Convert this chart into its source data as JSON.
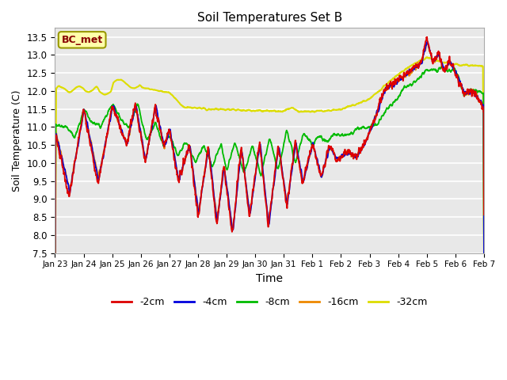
{
  "title": "Soil Temperatures Set B",
  "xlabel": "Time",
  "ylabel": "Soil Temperature (C)",
  "ylim": [
    7.5,
    13.75
  ],
  "yticks": [
    7.5,
    8.0,
    8.5,
    9.0,
    9.5,
    10.0,
    10.5,
    11.0,
    11.5,
    12.0,
    12.5,
    13.0,
    13.5
  ],
  "xtick_labels": [
    "Jan 23",
    "Jan 24",
    "Jan 25",
    "Jan 26",
    "Jan 27",
    "Jan 28",
    "Jan 29",
    "Jan 30",
    "Jan 31",
    "Feb 1",
    "Feb 2",
    "Feb 3",
    "Feb 4",
    "Feb 5",
    "Feb 6",
    "Feb 7"
  ],
  "legend_labels": [
    "-2cm",
    "-4cm",
    "-8cm",
    "-16cm",
    "-32cm"
  ],
  "colors": {
    "-2cm": "#dd0000",
    "-4cm": "#0000dd",
    "-8cm": "#00bb00",
    "-16cm": "#ee8800",
    "-32cm": "#dddd00"
  },
  "annotation_text": "BC_met",
  "annotation_bg": "#ffffaa",
  "annotation_border": "#999900",
  "plot_bg": "#e8e8e8",
  "grid_color": "#ffffff"
}
